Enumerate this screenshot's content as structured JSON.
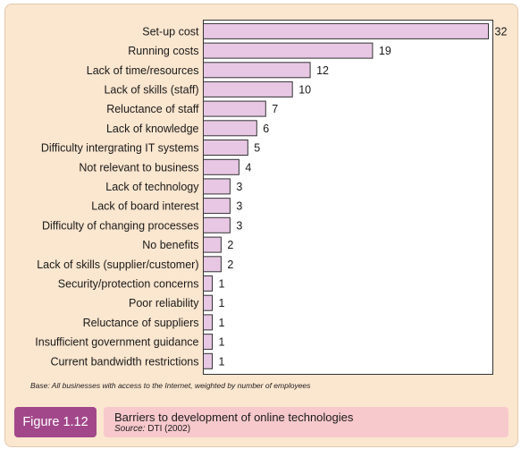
{
  "figure": {
    "number": "Figure 1.12",
    "title": "Barriers to development of online technologies",
    "source_prefix": "Source:",
    "source": "DTI (2002)"
  },
  "base_note": "Base: All businesses with access to the Internet, weighted by number of employees",
  "colors": {
    "panel_bg": "#fbe6cf",
    "bar_fill": "#e7c7e3",
    "badge_bg": "#a2478a",
    "caption_bg": "#f7c9cc"
  },
  "chart_data": {
    "type": "bar",
    "orientation": "horizontal",
    "categories": [
      "Set-up cost",
      "Running costs",
      "Lack of time/resources",
      "Lack of skills (staff)",
      "Reluctance of staff",
      "Lack of knowledge",
      "Difficulty intergrating IT systems",
      "Not relevant to business",
      "Lack of technology",
      "Lack of board interest",
      "Difficulty of changing processes",
      "No benefits",
      "Lack of skills (supplier/customer)",
      "Security/protection concerns",
      "Poor reliability",
      "Reluctance of suppliers",
      "Insufficient government guidance",
      "Current bandwidth restrictions"
    ],
    "values": [
      32,
      19,
      12,
      10,
      7,
      6,
      5,
      4,
      3,
      3,
      3,
      2,
      2,
      1,
      1,
      1,
      1,
      1
    ],
    "value_labels": [
      "32",
      "19",
      "12",
      "10",
      "7",
      "6",
      "5",
      "4",
      "3",
      "3",
      "3",
      "2",
      "2",
      "1",
      "1",
      "1",
      "1",
      "1"
    ],
    "xlim": [
      0,
      32.5
    ],
    "grid": false,
    "legend": "none"
  }
}
